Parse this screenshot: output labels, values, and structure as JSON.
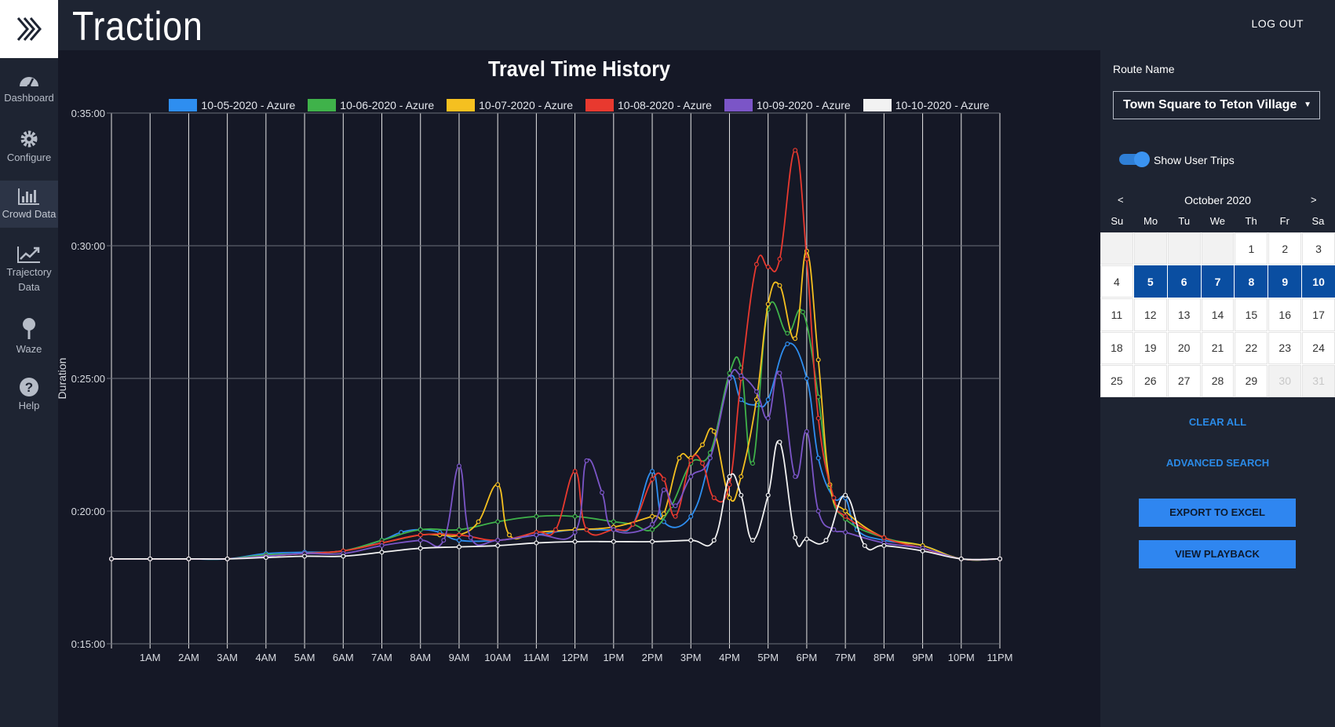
{
  "app": {
    "title": "Traction",
    "logout_label": "LOG OUT"
  },
  "sidebar": {
    "items": [
      {
        "label": "Dashboard",
        "icon": "dashboard-gauge-icon"
      },
      {
        "label": "Configure",
        "icon": "gear-icon"
      },
      {
        "label": "Crowd Data",
        "icon": "bar-chart-icon",
        "active": true
      },
      {
        "label": "Trajectory",
        "label2": "Data",
        "icon": "trend-line-icon"
      },
      {
        "label": "Waze",
        "icon": "map-pin-icon"
      },
      {
        "label": "Help",
        "icon": "question-circle-icon"
      }
    ]
  },
  "colors": {
    "background": "#151826",
    "panel": "#1e2432",
    "accent": "#2f86f0",
    "selected_day": "#0a4ea1",
    "series": [
      "#2e8ef0",
      "#3fb24a",
      "#f5c020",
      "#e8392f",
      "#7b55c7",
      "#f2f2f2"
    ]
  },
  "chart_data": {
    "type": "line",
    "title": "Travel Time History",
    "ylabel": "Duration",
    "xlabel": "",
    "y_ticks": [
      "0:15:00",
      "0:20:00",
      "0:25:00",
      "0:30:00",
      "0:35:00"
    ],
    "ylim_minutes": [
      15,
      35
    ],
    "x_ticks": [
      "1AM",
      "2AM",
      "3AM",
      "4AM",
      "5AM",
      "6AM",
      "7AM",
      "8AM",
      "9AM",
      "10AM",
      "11AM",
      "12PM",
      "1PM",
      "2PM",
      "3PM",
      "4PM",
      "5PM",
      "6PM",
      "7PM",
      "8PM",
      "9PM",
      "10PM",
      "11PM"
    ],
    "x_range_hours": [
      0,
      23
    ],
    "grid": true,
    "legend_position": "top",
    "series": [
      {
        "name": "10-05-2020 - Azure",
        "points": [
          [
            0,
            18.2
          ],
          [
            1,
            18.2
          ],
          [
            2,
            18.2
          ],
          [
            3,
            18.2
          ],
          [
            4,
            18.4
          ],
          [
            5,
            18.45
          ],
          [
            6,
            18.5
          ],
          [
            7,
            18.9
          ],
          [
            7.5,
            19.2
          ],
          [
            8,
            19.3
          ],
          [
            8.5,
            19.2
          ],
          [
            9,
            18.9
          ],
          [
            10,
            18.9
          ],
          [
            11,
            19.1
          ],
          [
            12,
            19.3
          ],
          [
            13,
            19.3
          ],
          [
            13.5,
            19.5
          ],
          [
            14,
            21.5
          ],
          [
            14.3,
            19.6
          ],
          [
            15,
            19.8
          ],
          [
            15.5,
            22
          ],
          [
            16,
            25
          ],
          [
            16.3,
            24.2
          ],
          [
            16.7,
            24
          ],
          [
            17,
            24.2
          ],
          [
            17.5,
            26.3
          ],
          [
            18,
            25
          ],
          [
            18.3,
            22
          ],
          [
            18.7,
            20.5
          ],
          [
            19,
            20.5
          ],
          [
            19.3,
            19.3
          ],
          [
            20,
            18.9
          ],
          [
            21,
            18.7
          ],
          [
            22,
            18.2
          ],
          [
            23,
            18.2
          ]
        ]
      },
      {
        "name": "10-06-2020 - Azure",
        "points": [
          [
            0,
            18.2
          ],
          [
            1,
            18.2
          ],
          [
            2,
            18.2
          ],
          [
            3,
            18.2
          ],
          [
            4,
            18.35
          ],
          [
            5,
            18.4
          ],
          [
            6,
            18.5
          ],
          [
            7,
            18.9
          ],
          [
            8,
            19.3
          ],
          [
            9,
            19.3
          ],
          [
            10,
            19.6
          ],
          [
            11,
            19.8
          ],
          [
            12,
            19.8
          ],
          [
            13,
            19.6
          ],
          [
            13.5,
            19.5
          ],
          [
            14,
            19.3
          ],
          [
            14.5,
            20.2
          ],
          [
            15,
            21.8
          ],
          [
            15.5,
            22.2
          ],
          [
            16,
            25.2
          ],
          [
            16.3,
            25.4
          ],
          [
            16.6,
            21.8
          ],
          [
            17,
            27.6
          ],
          [
            17.5,
            26.7
          ],
          [
            17.9,
            27.5
          ],
          [
            18.3,
            24.3
          ],
          [
            18.6,
            20.9
          ],
          [
            19,
            19.7
          ],
          [
            20,
            19
          ],
          [
            21,
            18.7
          ],
          [
            22,
            18.2
          ],
          [
            23,
            18.2
          ]
        ]
      },
      {
        "name": "10-07-2020 - Azure",
        "points": [
          [
            0,
            18.2
          ],
          [
            1,
            18.2
          ],
          [
            2,
            18.2
          ],
          [
            3,
            18.2
          ],
          [
            4,
            18.3
          ],
          [
            5,
            18.4
          ],
          [
            6,
            18.5
          ],
          [
            7,
            18.8
          ],
          [
            8,
            19.1
          ],
          [
            8.5,
            19.1
          ],
          [
            9,
            19.1
          ],
          [
            9.5,
            19.6
          ],
          [
            10,
            21
          ],
          [
            10.3,
            19.1
          ],
          [
            11,
            19.2
          ],
          [
            12,
            19.3
          ],
          [
            13,
            19.4
          ],
          [
            14,
            19.8
          ],
          [
            14.3,
            19.9
          ],
          [
            14.7,
            22
          ],
          [
            15,
            22
          ],
          [
            15.3,
            22.5
          ],
          [
            15.6,
            23
          ],
          [
            16,
            20.5
          ],
          [
            16.3,
            21.3
          ],
          [
            16.7,
            24.2
          ],
          [
            17,
            27.8
          ],
          [
            17.3,
            28.5
          ],
          [
            17.7,
            26.5
          ],
          [
            18,
            29.8
          ],
          [
            18.3,
            25.7
          ],
          [
            18.6,
            21
          ],
          [
            19,
            20
          ],
          [
            20,
            19
          ],
          [
            21,
            18.7
          ],
          [
            22,
            18.2
          ],
          [
            23,
            18.2
          ]
        ]
      },
      {
        "name": "10-08-2020 - Azure",
        "points": [
          [
            0,
            18.2
          ],
          [
            1,
            18.2
          ],
          [
            2,
            18.2
          ],
          [
            3,
            18.2
          ],
          [
            4,
            18.3
          ],
          [
            5,
            18.4
          ],
          [
            6,
            18.5
          ],
          [
            7,
            18.8
          ],
          [
            8,
            19.1
          ],
          [
            9,
            19.1
          ],
          [
            10,
            18.9
          ],
          [
            11,
            19.2
          ],
          [
            11.5,
            19.3
          ],
          [
            12,
            21.5
          ],
          [
            12.3,
            19.3
          ],
          [
            13,
            19.3
          ],
          [
            13.5,
            19.5
          ],
          [
            14,
            21.2
          ],
          [
            14.3,
            21.2
          ],
          [
            14.6,
            19.8
          ],
          [
            15,
            21.9
          ],
          [
            15.3,
            21.8
          ],
          [
            15.6,
            20.5
          ],
          [
            16,
            21
          ],
          [
            16.3,
            25
          ],
          [
            16.7,
            29.3
          ],
          [
            17,
            29.2
          ],
          [
            17.3,
            29.5
          ],
          [
            17.7,
            33.6
          ],
          [
            18,
            29.5
          ],
          [
            18.3,
            23.5
          ],
          [
            18.7,
            20.5
          ],
          [
            19,
            19.8
          ],
          [
            20,
            19
          ],
          [
            21,
            18.6
          ],
          [
            22,
            18.2
          ],
          [
            23,
            18.2
          ]
        ]
      },
      {
        "name": "10-09-2020 - Azure",
        "points": [
          [
            0,
            18.2
          ],
          [
            1,
            18.2
          ],
          [
            2,
            18.2
          ],
          [
            3,
            18.2
          ],
          [
            4,
            18.3
          ],
          [
            5,
            18.4
          ],
          [
            6,
            18.4
          ],
          [
            7,
            18.7
          ],
          [
            8,
            18.9
          ],
          [
            8.6,
            18.9
          ],
          [
            9,
            21.7
          ],
          [
            9.3,
            19
          ],
          [
            10,
            18.9
          ],
          [
            11,
            19.1
          ],
          [
            12,
            19.2
          ],
          [
            12.3,
            21.9
          ],
          [
            12.7,
            20.7
          ],
          [
            13,
            19.3
          ],
          [
            14,
            19.5
          ],
          [
            14.3,
            20.8
          ],
          [
            14.6,
            20.2
          ],
          [
            15,
            21.3
          ],
          [
            15.5,
            22
          ],
          [
            16,
            25
          ],
          [
            16.3,
            25.1
          ],
          [
            16.7,
            24.5
          ],
          [
            17,
            23.5
          ],
          [
            17.3,
            25.2
          ],
          [
            17.7,
            21.3
          ],
          [
            18,
            23
          ],
          [
            18.3,
            20
          ],
          [
            18.7,
            19.3
          ],
          [
            19,
            19.2
          ],
          [
            20,
            18.8
          ],
          [
            21,
            18.6
          ],
          [
            22,
            18.2
          ],
          [
            23,
            18.2
          ]
        ]
      },
      {
        "name": "10-10-2020 - Azure",
        "points": [
          [
            0,
            18.2
          ],
          [
            1,
            18.2
          ],
          [
            2,
            18.2
          ],
          [
            3,
            18.2
          ],
          [
            4,
            18.25
          ],
          [
            5,
            18.3
          ],
          [
            6,
            18.3
          ],
          [
            7,
            18.45
          ],
          [
            8,
            18.6
          ],
          [
            9,
            18.65
          ],
          [
            10,
            18.7
          ],
          [
            11,
            18.8
          ],
          [
            12,
            18.85
          ],
          [
            13,
            18.85
          ],
          [
            14,
            18.85
          ],
          [
            15,
            18.9
          ],
          [
            15.6,
            18.9
          ],
          [
            16,
            21.3
          ],
          [
            16.3,
            20.6
          ],
          [
            16.6,
            18.9
          ],
          [
            17,
            20.6
          ],
          [
            17.3,
            22.6
          ],
          [
            17.7,
            19
          ],
          [
            18,
            18.95
          ],
          [
            18.5,
            18.9
          ],
          [
            19,
            20.6
          ],
          [
            19.5,
            18.7
          ],
          [
            20,
            18.7
          ],
          [
            21,
            18.5
          ],
          [
            22,
            18.2
          ],
          [
            23,
            18.2
          ]
        ]
      }
    ]
  },
  "panel": {
    "route_label": "Route Name",
    "route_value": "Town Square to Teton Village",
    "toggle_label": "Show User Trips",
    "toggle_on": true,
    "calendar": {
      "prev": "<",
      "next": ">",
      "month": "October 2020",
      "weekdays": [
        "Su",
        "Mo",
        "Tu",
        "We",
        "Th",
        "Fr",
        "Sa"
      ],
      "leading_empty": 4,
      "days": [
        "1",
        "2",
        "3",
        "4",
        "5",
        "6",
        "7",
        "8",
        "9",
        "10",
        "11",
        "12",
        "13",
        "14",
        "15",
        "16",
        "17",
        "18",
        "19",
        "20",
        "21",
        "22",
        "23",
        "24",
        "25",
        "26",
        "27",
        "28",
        "29",
        "30",
        "31"
      ],
      "selected": [
        "5",
        "6",
        "7",
        "8",
        "9",
        "10"
      ],
      "disabled": [
        "30",
        "31"
      ]
    },
    "clear_all": "CLEAR ALL",
    "advanced_search": "ADVANCED SEARCH",
    "export_label": "EXPORT TO EXCEL",
    "playback_label": "VIEW PLAYBACK"
  }
}
